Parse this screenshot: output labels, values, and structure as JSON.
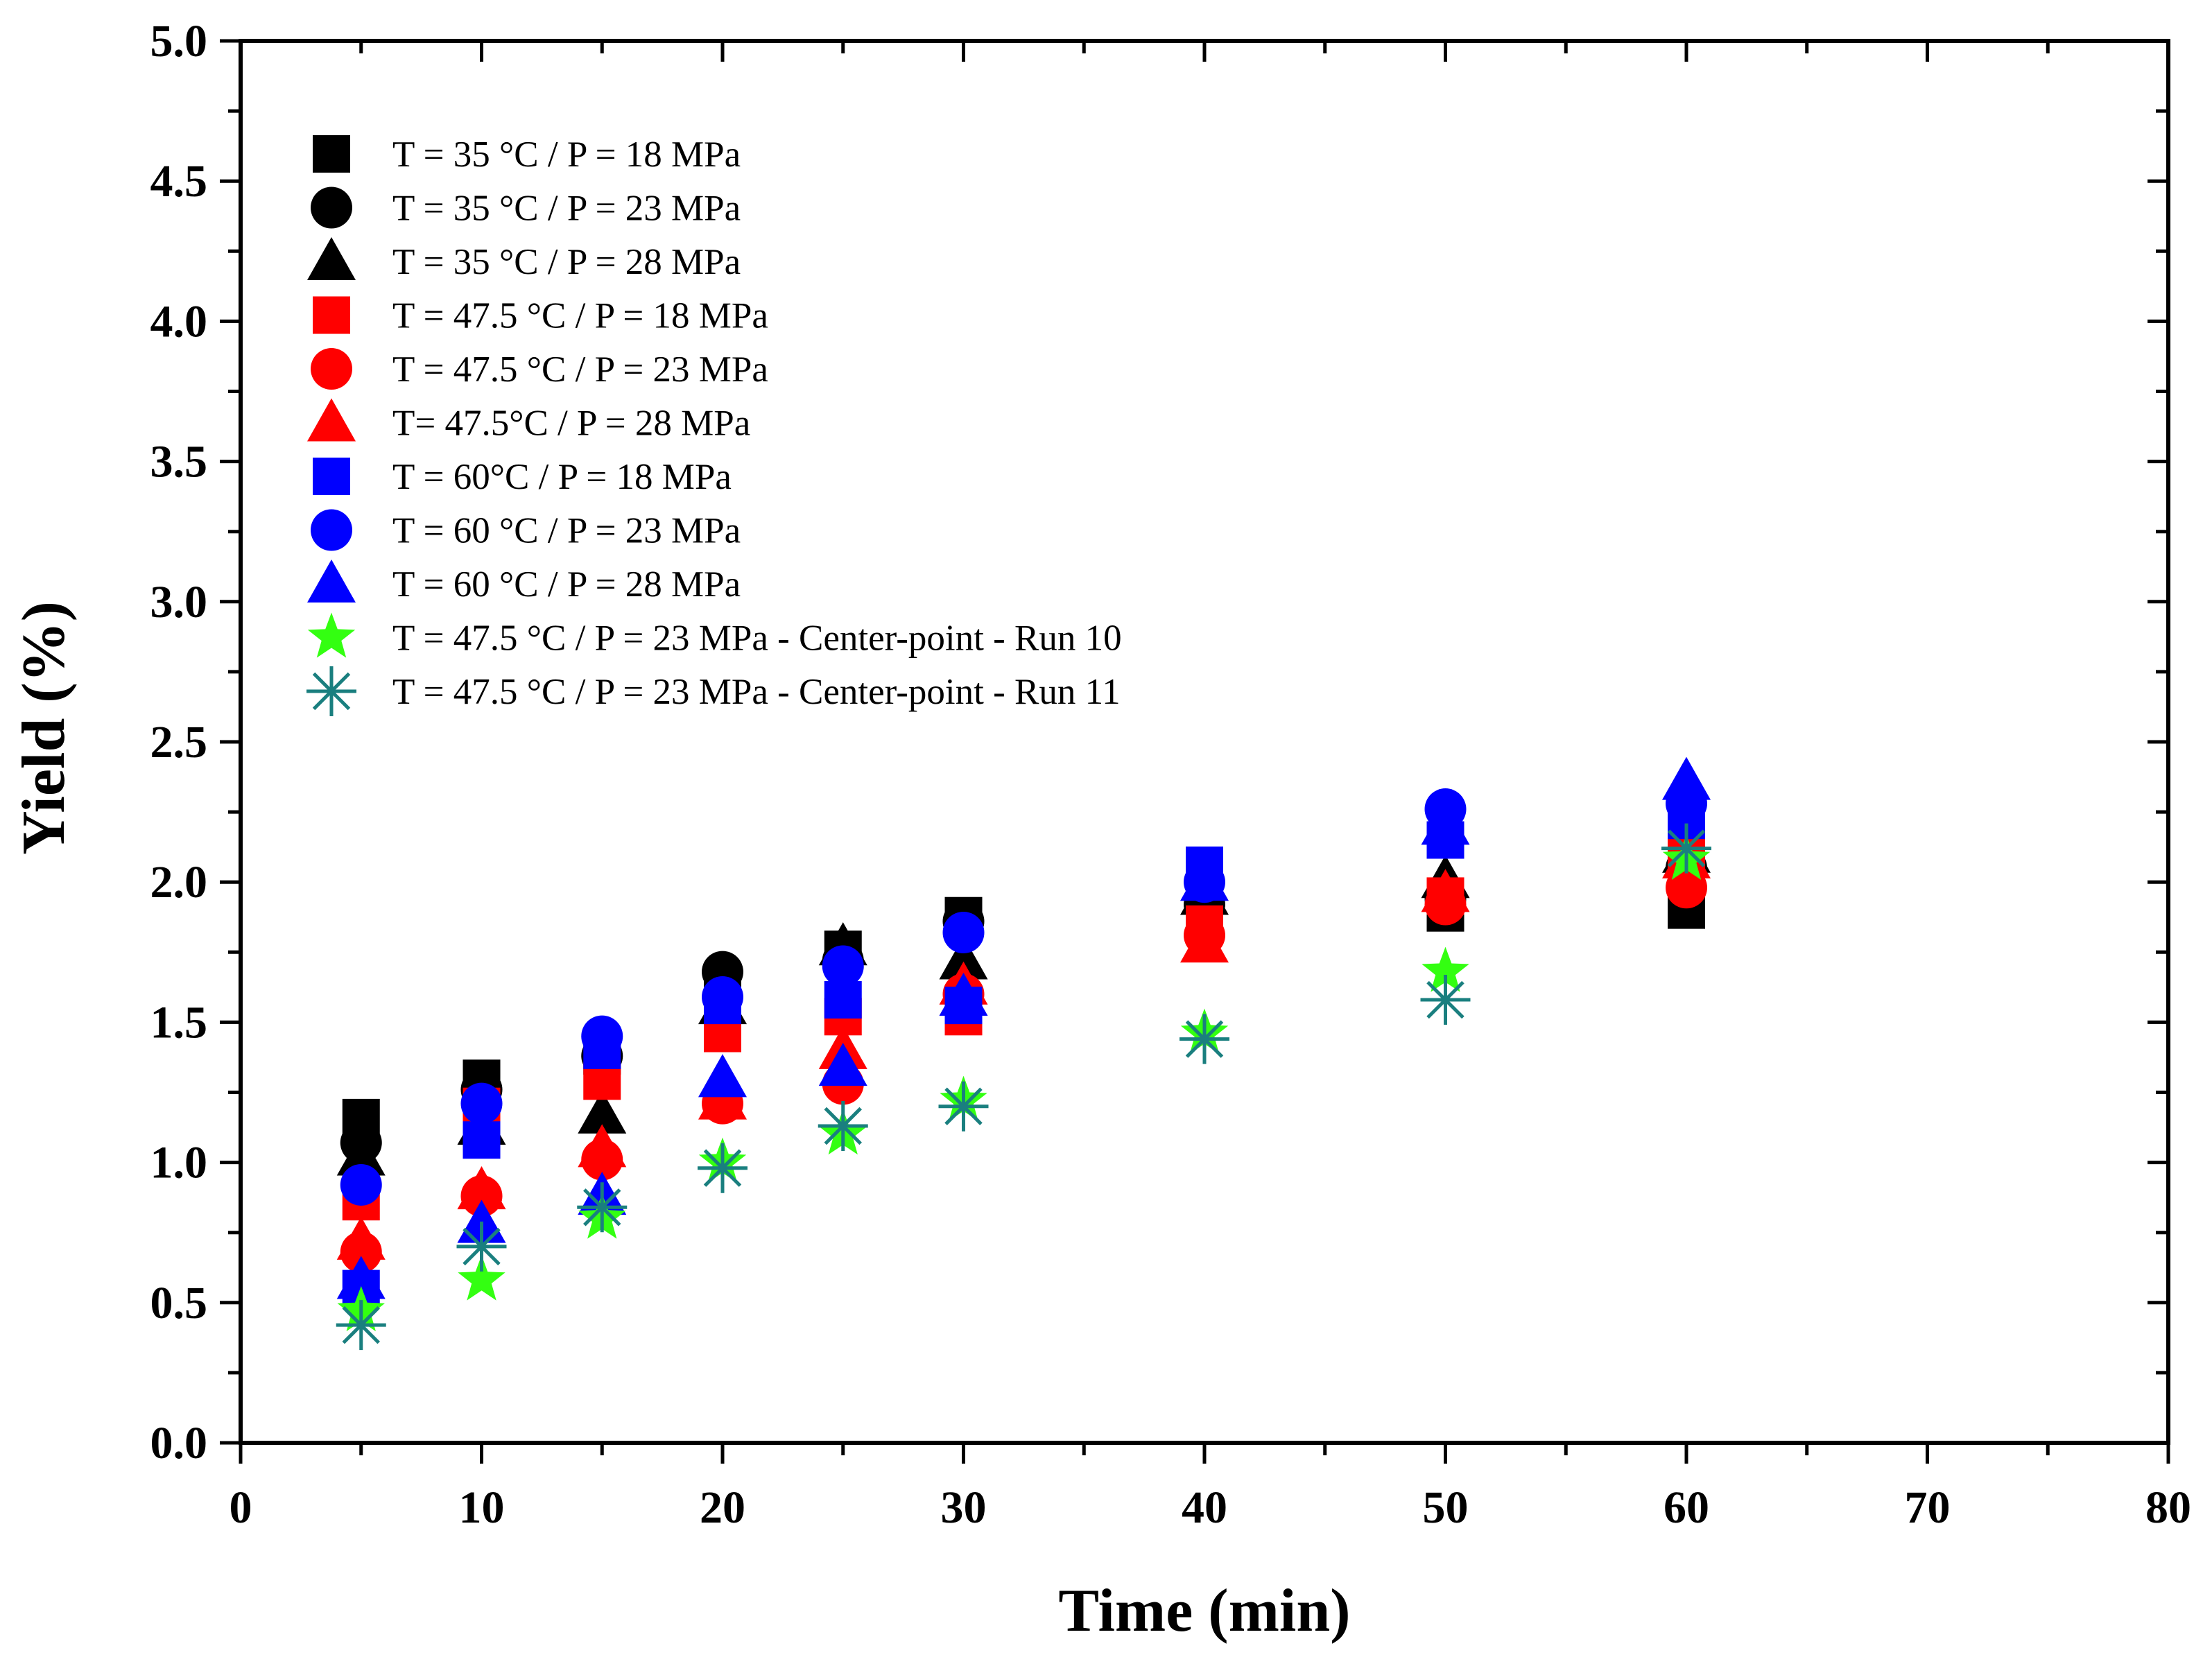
{
  "chart_data": {
    "type": "scatter",
    "title": "",
    "xlabel": "Time (min)",
    "ylabel": "Yield (%)",
    "xlim": [
      0,
      80
    ],
    "ylim": [
      0.0,
      5.0
    ],
    "xticks": [
      "0",
      "10",
      "20",
      "30",
      "40",
      "50",
      "60",
      "70",
      "80"
    ],
    "yticks": [
      "0.0",
      "0.5",
      "1.0",
      "1.5",
      "2.0",
      "2.5",
      "3.0",
      "3.5",
      "4.0",
      "4.5",
      "5.0"
    ],
    "grid": false,
    "legend_position": "top-left",
    "x": [
      5,
      10,
      15,
      20,
      25,
      30,
      40,
      50,
      60
    ],
    "series": [
      {
        "name": "T = 35 °C / P = 18 MPa",
        "marker": "square",
        "color": "#000000",
        "values": [
          1.16,
          1.3,
          1.38,
          1.58,
          1.76,
          1.88,
          1.93,
          1.89,
          1.9
        ]
      },
      {
        "name": "T = 35 °C / P = 23 MPa",
        "marker": "circle",
        "color": "#000000",
        "values": [
          1.07,
          1.26,
          1.38,
          1.68,
          1.72,
          1.86,
          1.92,
          1.94,
          2.05
        ]
      },
      {
        "name": "T = 35 °C / P = 28 MPa",
        "marker": "triangle",
        "color": "#000000",
        "values": [
          1.02,
          1.13,
          1.17,
          1.56,
          1.77,
          1.72,
          1.95,
          2.01,
          2.1
        ]
      },
      {
        "name": "T = 47.5 °C / P = 18 MPa",
        "marker": "square",
        "color": "#ff0000",
        "values": [
          0.86,
          1.2,
          1.29,
          1.46,
          1.52,
          1.52,
          1.85,
          1.95,
          2.1
        ]
      },
      {
        "name": "T = 47.5 °C / P = 23 MPa",
        "marker": "circle",
        "color": "#ff0000",
        "values": [
          0.68,
          0.88,
          1.01,
          1.21,
          1.28,
          1.6,
          1.81,
          1.92,
          1.98
        ]
      },
      {
        "name": "T= 47.5°C / P = 28 MPa",
        "marker": "triangle",
        "color": "#ff0000",
        "values": [
          0.72,
          0.9,
          1.05,
          1.22,
          1.4,
          1.63,
          1.78,
          1.96,
          2.08
        ]
      },
      {
        "name": "T = 60°C / P = 18 MPa",
        "marker": "square",
        "color": "#0000ff",
        "values": [
          0.55,
          1.08,
          1.4,
          1.56,
          1.58,
          1.56,
          2.06,
          2.15,
          2.22
        ]
      },
      {
        "name": "T = 60 °C / P = 23 MPa",
        "marker": "circle",
        "color": "#0000ff",
        "values": [
          0.92,
          1.21,
          1.45,
          1.59,
          1.7,
          1.82,
          2.0,
          2.26,
          2.28
        ]
      },
      {
        "name": "T = 60 °C / P = 28 MPa",
        "marker": "triangle",
        "color": "#0000ff",
        "values": [
          0.58,
          0.78,
          0.88,
          1.3,
          1.34,
          1.59,
          2.0,
          2.2,
          2.36
        ]
      },
      {
        "name": "T = 47.5 °C / P = 23 MPa - Center-point - Run 10",
        "marker": "star",
        "color": "#33ff11",
        "values": [
          0.47,
          0.58,
          0.8,
          1.0,
          1.1,
          1.22,
          1.46,
          1.68,
          2.08
        ]
      },
      {
        "name": "T = 47.5 °C / P = 23 MPa - Center-point - Run 11",
        "marker": "asterisk",
        "color": "#1a7f7f",
        "values": [
          0.42,
          0.7,
          0.84,
          0.98,
          1.13,
          1.2,
          1.44,
          1.58,
          2.12
        ]
      }
    ]
  }
}
